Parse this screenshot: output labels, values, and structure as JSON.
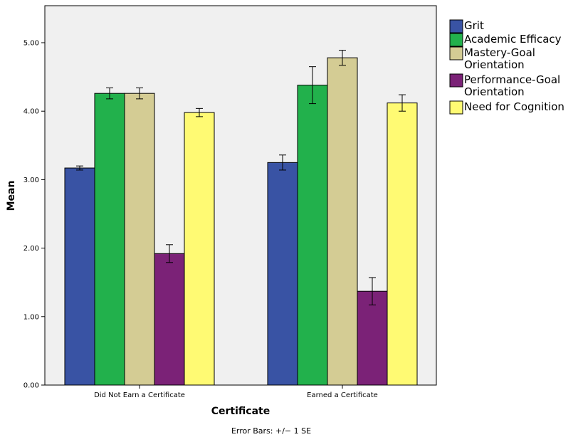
{
  "chart_data": {
    "type": "bar",
    "categories": [
      "Did Not Earn a Certificate",
      "Earned a Certificate"
    ],
    "series": [
      {
        "name": "Grit",
        "color": "#3953a4",
        "values": [
          3.17,
          3.25
        ],
        "se": [
          0.03,
          0.11
        ]
      },
      {
        "name": "Academic Efficacy",
        "color": "#22b14c",
        "values": [
          4.26,
          4.38
        ],
        "se": [
          0.08,
          0.27
        ]
      },
      {
        "name": "Mastery-Goal Orientation",
        "label_lines": [
          "Mastery-Goal",
          "Orientation"
        ],
        "color": "#d4cc94",
        "values": [
          4.26,
          4.78
        ],
        "se": [
          0.08,
          0.11
        ]
      },
      {
        "name": "Performance-Goal Orientation",
        "label_lines": [
          "Performance-Goal",
          "Orientation"
        ],
        "color": "#7b2277",
        "values": [
          1.92,
          1.37
        ],
        "se": [
          0.13,
          0.2
        ]
      },
      {
        "name": "Need for Cognition",
        "color": "#fffa73",
        "values": [
          3.98,
          4.12
        ],
        "se": [
          0.06,
          0.12
        ]
      }
    ],
    "xlabel": "Certificate",
    "ylabel": "Mean",
    "ylim": [
      0,
      5.5
    ],
    "yticks": [
      0,
      1,
      2,
      3,
      4,
      5
    ],
    "ytick_labels": [
      "0.00",
      "1.00",
      "2.00",
      "3.00",
      "4.00",
      "5.00"
    ],
    "footnote": "Error Bars: +/− 1 SE",
    "legend_position": "right",
    "grid": false,
    "plot_background": "#f0f0f0"
  }
}
